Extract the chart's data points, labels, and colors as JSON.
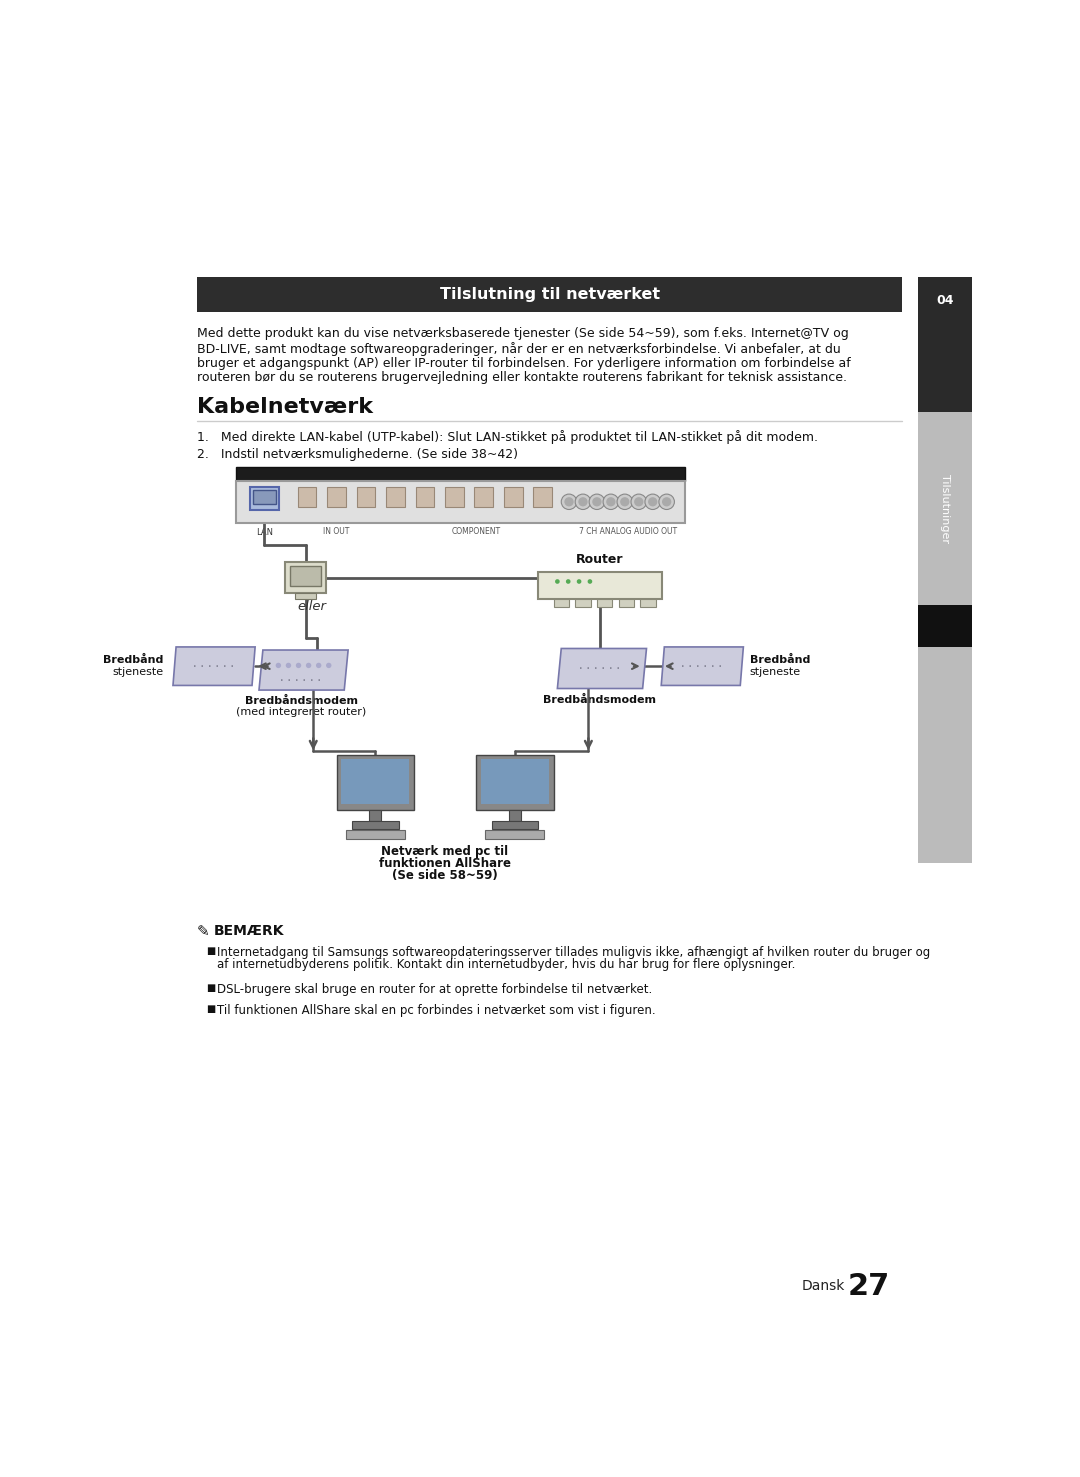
{
  "bg_color": "#ffffff",
  "header_bar": {
    "text": "Tilslutning til netværket",
    "bg_color": "#2d2d2d",
    "text_color": "#ffffff"
  },
  "body_text_lines": [
    "Med dette produkt kan du vise netværksbaserede tjenester (Se side 54~59), som f.eks. Internet@TV og",
    "BD-LIVE, samt modtage softwareopgraderinger, når der er en netværksforbindelse. Vi anbefaler, at du",
    "bruger et adgangspunkt (AP) eller IP-router til forbindelsen. For yderligere information om forbindelse af",
    "routeren bør du se routerens brugervejledning eller kontakte routerens fabrikant for teknisk assistance."
  ],
  "section_title": "Kabelnetværk",
  "step1": "1.   Med direkte LAN-kabel (UTP-kabel): Slut LAN-stikket på produktet til LAN-stikket på dit modem.",
  "step2": "2.   Indstil netværksmulighederne. (Se side 38~42)",
  "sidebar_text": "Tilslutninger",
  "sidebar_chapter": "04",
  "label_eller": "eller",
  "label_router": "Router",
  "label_modem_left_line1": "Bredbåndsmodem",
  "label_modem_left_line2": "(med integreret router)",
  "label_modem_right": "Bredbåndsmodem",
  "label_broad_left_line1": "Bredbånd",
  "label_broad_left_line2": "stjeneste",
  "label_broad_right_line1": "Bredbånd",
  "label_broad_right_line2": "stjeneste",
  "label_allshare_line1": "Netværk med pc til",
  "label_allshare_line2": "funktionen AllShare",
  "label_allshare_line3": "(Se side 58~59)",
  "note_title": "BEMÆRK",
  "note_bullet1_line1": "Internetadgang til Samsungs softwareopdateringsserver tillades muligvis ikke, afhængigt af hvilken router du bruger og",
  "note_bullet1_line2": "af internetudbyderens politik. Kontakt din internetudbyder, hvis du har brug for flere oplysninger.",
  "note_bullet2": "DSL-brugere skal bruge en router for at oprette forbindelse til netværket.",
  "note_bullet3": "Til funktionen AllShare skal en pc forbindes i netværket som vist i figuren.",
  "page_number": "27",
  "page_lang": "Dansk"
}
